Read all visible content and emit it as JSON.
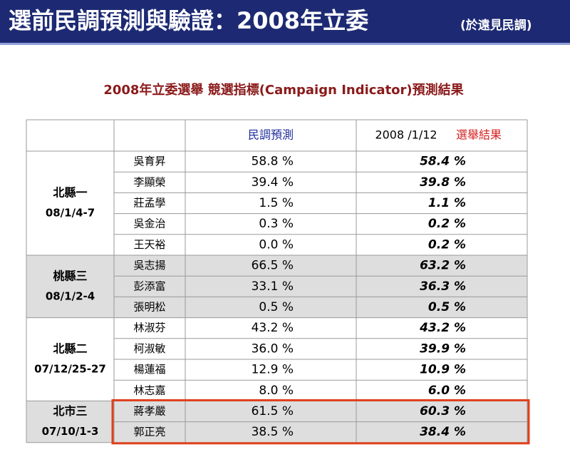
{
  "header": {
    "title": "選前民調預測與驗證：2008年立委",
    "source": "(於遠見民調)"
  },
  "subtitle": "2008年立委選舉 競選指標(Campaign Indicator)預測結果",
  "table": {
    "poll_header": "民調預測",
    "result_date": "2008 /1/12",
    "result_label": "選舉結果",
    "groups": [
      {
        "district": "北縣一",
        "dates": "08/1/4-7",
        "rows": [
          {
            "name": "吳育昇",
            "poll": "58.8 %",
            "result": "58.4 %"
          },
          {
            "name": "李顯榮",
            "poll": "39.4 %",
            "result": "39.8 %"
          },
          {
            "name": "莊孟學",
            "poll": "1.5 %",
            "result": "1.1 %"
          },
          {
            "name": "吳金治",
            "poll": "0.3 %",
            "result": "0.2 %"
          },
          {
            "name": "王天裕",
            "poll": "0.0 %",
            "result": "0.2 %"
          }
        ]
      },
      {
        "district": "桃縣三",
        "dates": "08/1/2-4",
        "rows": [
          {
            "name": "吳志揚",
            "poll": "66.5 %",
            "result": "63.2 %"
          },
          {
            "name": "彭添富",
            "poll": "33.1 %",
            "result": "36.3 %"
          },
          {
            "name": "張明松",
            "poll": "0.5 %",
            "result": "0.5 %"
          }
        ]
      },
      {
        "district": "北縣二",
        "dates": "07/12/25-27",
        "rows": [
          {
            "name": "林淑芬",
            "poll": "43.2 %",
            "result": "43.2 %"
          },
          {
            "name": "柯淑敏",
            "poll": "36.0 %",
            "result": "39.9 %"
          },
          {
            "name": "楊蓮福",
            "poll": "12.9 %",
            "result": "10.9 %"
          },
          {
            "name": "林志嘉",
            "poll": "8.0 %",
            "result": "6.0 %"
          }
        ]
      },
      {
        "district": "北市三",
        "dates": "07/10/1-3",
        "rows": [
          {
            "name": "蔣孝嚴",
            "poll": "61.5 %",
            "result": "60.3 %"
          },
          {
            "name": "郭正亮",
            "poll": "38.5 %",
            "result": "38.4 %"
          }
        ]
      }
    ]
  }
}
